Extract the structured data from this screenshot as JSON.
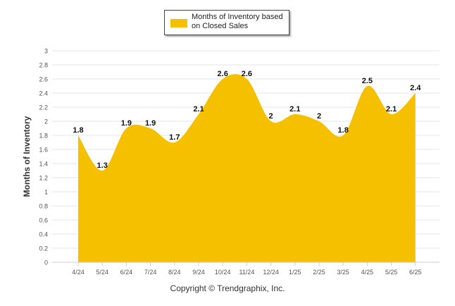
{
  "chart_data": {
    "type": "area",
    "categories": [
      "4/24",
      "5/24",
      "6/24",
      "7/24",
      "8/24",
      "9/24",
      "10/24",
      "11/24",
      "12/24",
      "1/25",
      "2/25",
      "3/25",
      "4/25",
      "5/25",
      "6/25"
    ],
    "series": [
      {
        "name": "Months of Inventory based on Closed Sales",
        "values": [
          1.8,
          1.3,
          1.9,
          1.9,
          1.7,
          2.1,
          2.6,
          2.6,
          2,
          2.1,
          2,
          1.8,
          2.5,
          2.1,
          2.4
        ],
        "labels": [
          "1.8",
          "1.3",
          "1.9",
          "1.9",
          "1.7",
          "2.1",
          "2.6",
          "2.6",
          "2",
          "2.1",
          "2",
          "1.8",
          "2.5",
          "2.1",
          "2.4"
        ],
        "color": "#F5C000"
      }
    ],
    "ylabel": "Months of Inventory",
    "xlabel": "",
    "ylim": [
      0,
      3
    ],
    "yticks": [
      "0",
      "0.2",
      "0.4",
      "0.6",
      "0.8",
      "1",
      "1.2",
      "1.4",
      "1.6",
      "1.8",
      "2",
      "2.2",
      "2.4",
      "2.6",
      "2.8",
      "3"
    ],
    "grid": true,
    "legend_position": "top-center"
  },
  "legend": {
    "line1": "Months of Inventory based",
    "line2": "on Closed Sales"
  },
  "credit": "Copyright © Trendgraphix, Inc.",
  "colors": {
    "area": "#F5C000",
    "grid": "#e6e6e6",
    "axis": "#cccccc",
    "text": "#333333"
  }
}
